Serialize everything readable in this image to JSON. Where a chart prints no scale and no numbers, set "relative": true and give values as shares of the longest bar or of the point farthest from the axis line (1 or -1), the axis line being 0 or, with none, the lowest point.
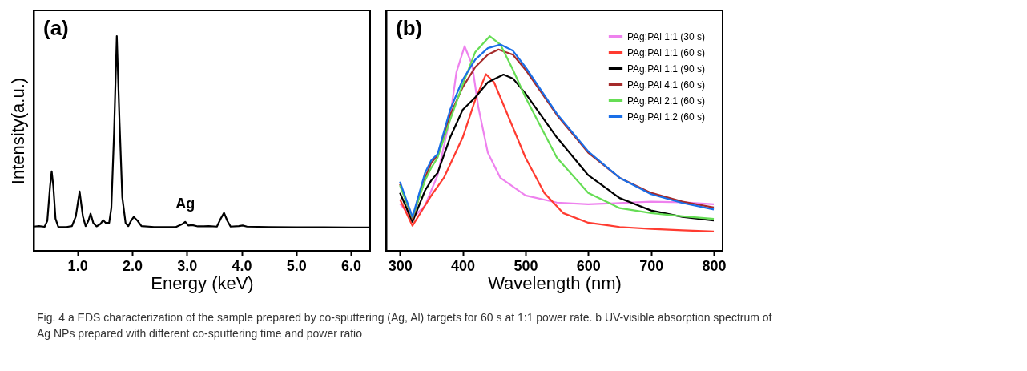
{
  "chart_data": [
    {
      "type": "line",
      "title": "(a)",
      "xlabel": "Energy (keV)",
      "ylabel": "Intensity(a.u.)",
      "relative": true,
      "tick_labels": "x",
      "grid": false,
      "legend": false,
      "xlim": [
        0.2,
        6.35
      ],
      "xticks": [
        {
          "value": 1,
          "label": "1.0"
        },
        {
          "value": 2,
          "label": "2.0"
        },
        {
          "value": 3,
          "label": "3.0"
        },
        {
          "value": 4,
          "label": "4.0"
        },
        {
          "value": 5,
          "label": "5.0"
        },
        {
          "value": 6,
          "label": "6.0"
        }
      ],
      "annotations": [
        {
          "text": "Ag",
          "x": 2.97,
          "y": 0.135
        },
        "Fig. 4 a EDS characterization of the sample prepared by co-sputtering (Ag, Al) targets for 60 s at 1:1 power rate. b UV-visible absorption spectrum of Ag NPs prepared with different co-sputtering time and power ratio"
      ],
      "series": [
        {
          "color": "#000000",
          "x": [
            0.2,
            0.3,
            0.4,
            0.45,
            0.5,
            0.53,
            0.56,
            0.6,
            0.65,
            0.8,
            0.9,
            0.97,
            1.04,
            1.1,
            1.15,
            1.2,
            1.24,
            1.29,
            1.35,
            1.42,
            1.47,
            1.52,
            1.58,
            1.62,
            1.67,
            1.72,
            1.77,
            1.82,
            1.88,
            1.93,
            1.98,
            2.03,
            2.1,
            2.17,
            2.4,
            2.8,
            2.92,
            2.97,
            3.03,
            3.1,
            3.2,
            3.4,
            3.55,
            3.62,
            3.68,
            3.74,
            3.8,
            3.95,
            4.02,
            4.1,
            4.5,
            5.0,
            5.5,
            6.0,
            6.35
          ],
          "values": [
            0.113,
            0.115,
            0.112,
            0.14,
            0.3,
            0.37,
            0.3,
            0.15,
            0.112,
            0.111,
            0.115,
            0.16,
            0.277,
            0.16,
            0.115,
            0.14,
            0.173,
            0.13,
            0.114,
            0.125,
            0.143,
            0.13,
            0.13,
            0.2,
            0.55,
            1.0,
            0.6,
            0.25,
            0.13,
            0.115,
            0.14,
            0.158,
            0.14,
            0.115,
            0.111,
            0.111,
            0.125,
            0.135,
            0.118,
            0.12,
            0.114,
            0.115,
            0.113,
            0.15,
            0.177,
            0.14,
            0.113,
            0.115,
            0.118,
            0.113,
            0.111,
            0.11,
            0.11,
            0.109,
            0.109
          ]
        }
      ]
    },
    {
      "type": "line",
      "title": "(b)",
      "xlabel": "Wavelength (nm)",
      "relative": true,
      "tick_labels": "x",
      "grid": false,
      "legend": "top right",
      "xlim": [
        278,
        814
      ],
      "xticks": [
        300,
        400,
        500,
        600,
        700,
        800
      ],
      "series": [
        {
          "name": "PAg:PAl 1:1 (30 s)",
          "color": "#ee82ee",
          "x": [
            300,
            320,
            340,
            360,
            380,
            390,
            403,
            415,
            425,
            440,
            460,
            500,
            550,
            600,
            650,
            700,
            750,
            800
          ],
          "values": [
            0.219,
            0.152,
            0.211,
            0.352,
            0.621,
            0.832,
            0.953,
            0.867,
            0.668,
            0.457,
            0.34,
            0.258,
            0.225,
            0.217,
            0.223,
            0.229,
            0.226,
            0.217
          ]
        },
        {
          "name": "PAg:PAl 1:1 (60 s)",
          "color": "#ff3b30",
          "x": [
            300,
            320,
            340,
            350,
            370,
            400,
            420,
            437,
            450,
            470,
            500,
            530,
            560,
            600,
            650,
            700,
            750,
            800
          ],
          "values": [
            0.24,
            0.117,
            0.211,
            0.258,
            0.34,
            0.528,
            0.703,
            0.823,
            0.785,
            0.645,
            0.434,
            0.27,
            0.176,
            0.131,
            0.111,
            0.102,
            0.096,
            0.09
          ]
        },
        {
          "name": "PAg:PAl 1:1 (90 s)",
          "color": "#000000",
          "x": [
            300,
            320,
            340,
            350,
            360,
            380,
            400,
            420,
            440,
            465,
            480,
            500,
            550,
            600,
            650,
            700,
            750,
            800
          ],
          "values": [
            0.27,
            0.135,
            0.281,
            0.328,
            0.363,
            0.528,
            0.657,
            0.715,
            0.785,
            0.821,
            0.803,
            0.733,
            0.528,
            0.352,
            0.246,
            0.188,
            0.158,
            0.141
          ]
        },
        {
          "name": "PAg:PAl 4:1 (60 s)",
          "color": "#a52a2a",
          "x": [
            300,
            320,
            340,
            350,
            360,
            380,
            400,
            420,
            440,
            457,
            480,
            500,
            550,
            600,
            650,
            700,
            750,
            800
          ],
          "values": [
            0.311,
            0.147,
            0.34,
            0.41,
            0.445,
            0.633,
            0.762,
            0.856,
            0.914,
            0.938,
            0.914,
            0.844,
            0.633,
            0.457,
            0.34,
            0.27,
            0.229,
            0.202
          ]
        },
        {
          "name": "PAg:PAl 2:1 (60 s)",
          "color": "#66dd55",
          "x": [
            300,
            320,
            340,
            350,
            360,
            380,
            400,
            420,
            443,
            460,
            480,
            500,
            550,
            600,
            650,
            700,
            750,
            800
          ],
          "values": [
            0.305,
            0.155,
            0.328,
            0.387,
            0.434,
            0.61,
            0.774,
            0.926,
            1.0,
            0.961,
            0.844,
            0.715,
            0.434,
            0.27,
            0.199,
            0.176,
            0.161,
            0.149
          ]
        },
        {
          "name": "PAg:PAl 1:2 (60 s)",
          "color": "#1a6fe8",
          "x": [
            300,
            320,
            340,
            350,
            360,
            380,
            400,
            420,
            440,
            460,
            480,
            500,
            550,
            600,
            650,
            700,
            750,
            800
          ],
          "values": [
            0.322,
            0.158,
            0.363,
            0.422,
            0.451,
            0.657,
            0.797,
            0.891,
            0.944,
            0.961,
            0.932,
            0.856,
            0.639,
            0.463,
            0.34,
            0.264,
            0.223,
            0.193
          ]
        }
      ]
    }
  ]
}
